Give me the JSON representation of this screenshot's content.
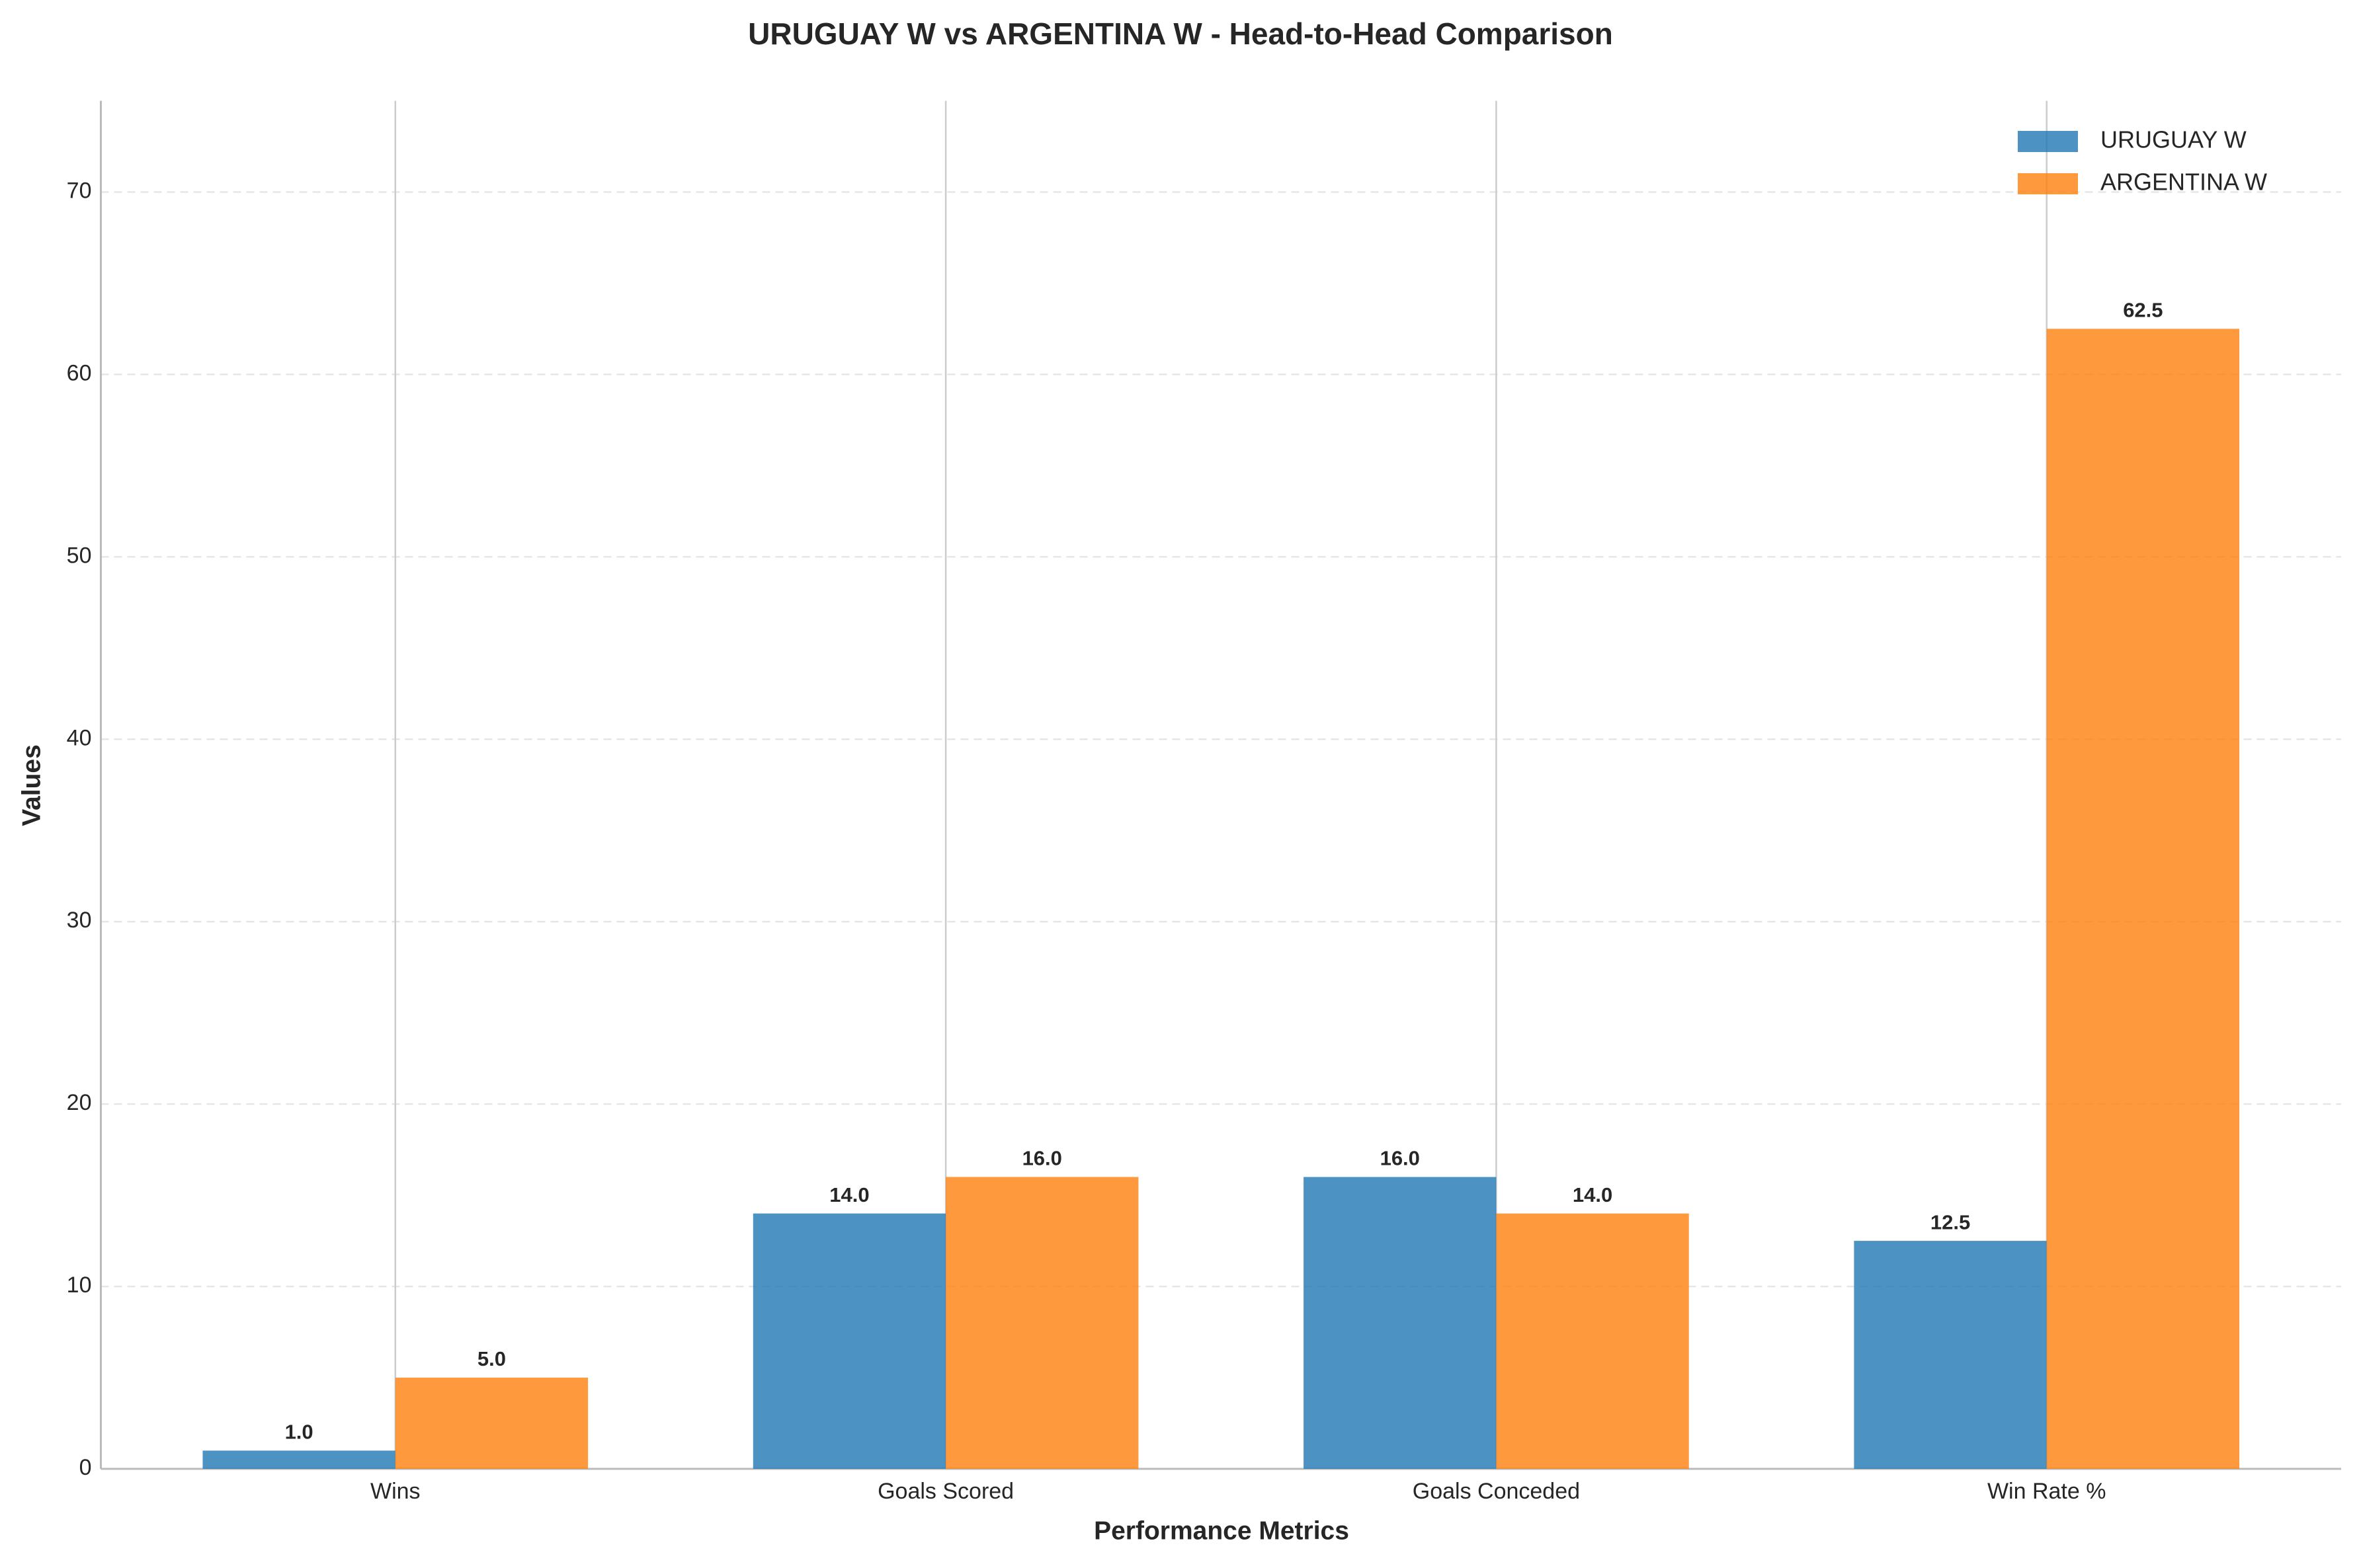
{
  "chart_data": {
    "type": "bar",
    "title": "URUGUAY W vs ARGENTINA W - Head-to-Head Comparison",
    "x_label": "Performance Metrics",
    "y_label": "Values",
    "categories": [
      "Wins",
      "Goals Scored",
      "Goals Conceded",
      "Win Rate %"
    ],
    "series": [
      {
        "name": "URUGUAY W",
        "color": "#1f77b4",
        "values": [
          1,
          14,
          16,
          12.5
        ],
        "value_labels": [
          "1.0",
          "14.0",
          "16.0",
          "12.5"
        ]
      },
      {
        "name": "ARGENTINA W",
        "color": "#ff7f0e",
        "values": [
          5,
          16,
          14,
          62.5
        ],
        "value_labels": [
          "5.0",
          "16.0",
          "14.0",
          "62.5"
        ]
      }
    ],
    "ylim": [
      0,
      75
    ],
    "yticks": [
      0,
      10,
      20,
      30,
      40,
      50,
      60,
      70
    ],
    "grid": true,
    "legend": "upper right"
  }
}
